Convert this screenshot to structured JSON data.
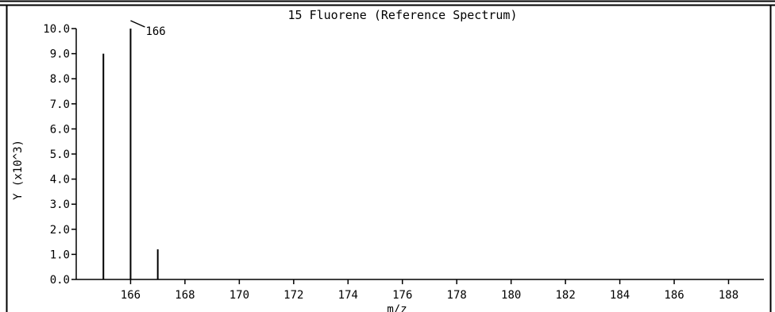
{
  "chart_data": {
    "type": "bar",
    "title": "15 Fluorene (Reference Spectrum)",
    "xlabel": "m/z",
    "ylabel": "Y (x10^3)",
    "xlim": [
      164,
      189.3
    ],
    "ylim": [
      0,
      10.0
    ],
    "x_ticks": [
      "166",
      "168",
      "170",
      "172",
      "174",
      "176",
      "178",
      "180",
      "182",
      "184",
      "186",
      "188"
    ],
    "y_ticks": [
      "0.0",
      "1.0",
      "2.0",
      "3.0",
      "4.0",
      "5.0",
      "6.0",
      "7.0",
      "8.0",
      "9.0",
      "10.0"
    ],
    "peaks": [
      {
        "x": 165,
        "y": 9.0
      },
      {
        "x": 166,
        "y": 10.0
      },
      {
        "x": 167,
        "y": 1.2
      }
    ],
    "annotations": [
      {
        "x": 166,
        "text": "166"
      }
    ],
    "grid": false
  }
}
